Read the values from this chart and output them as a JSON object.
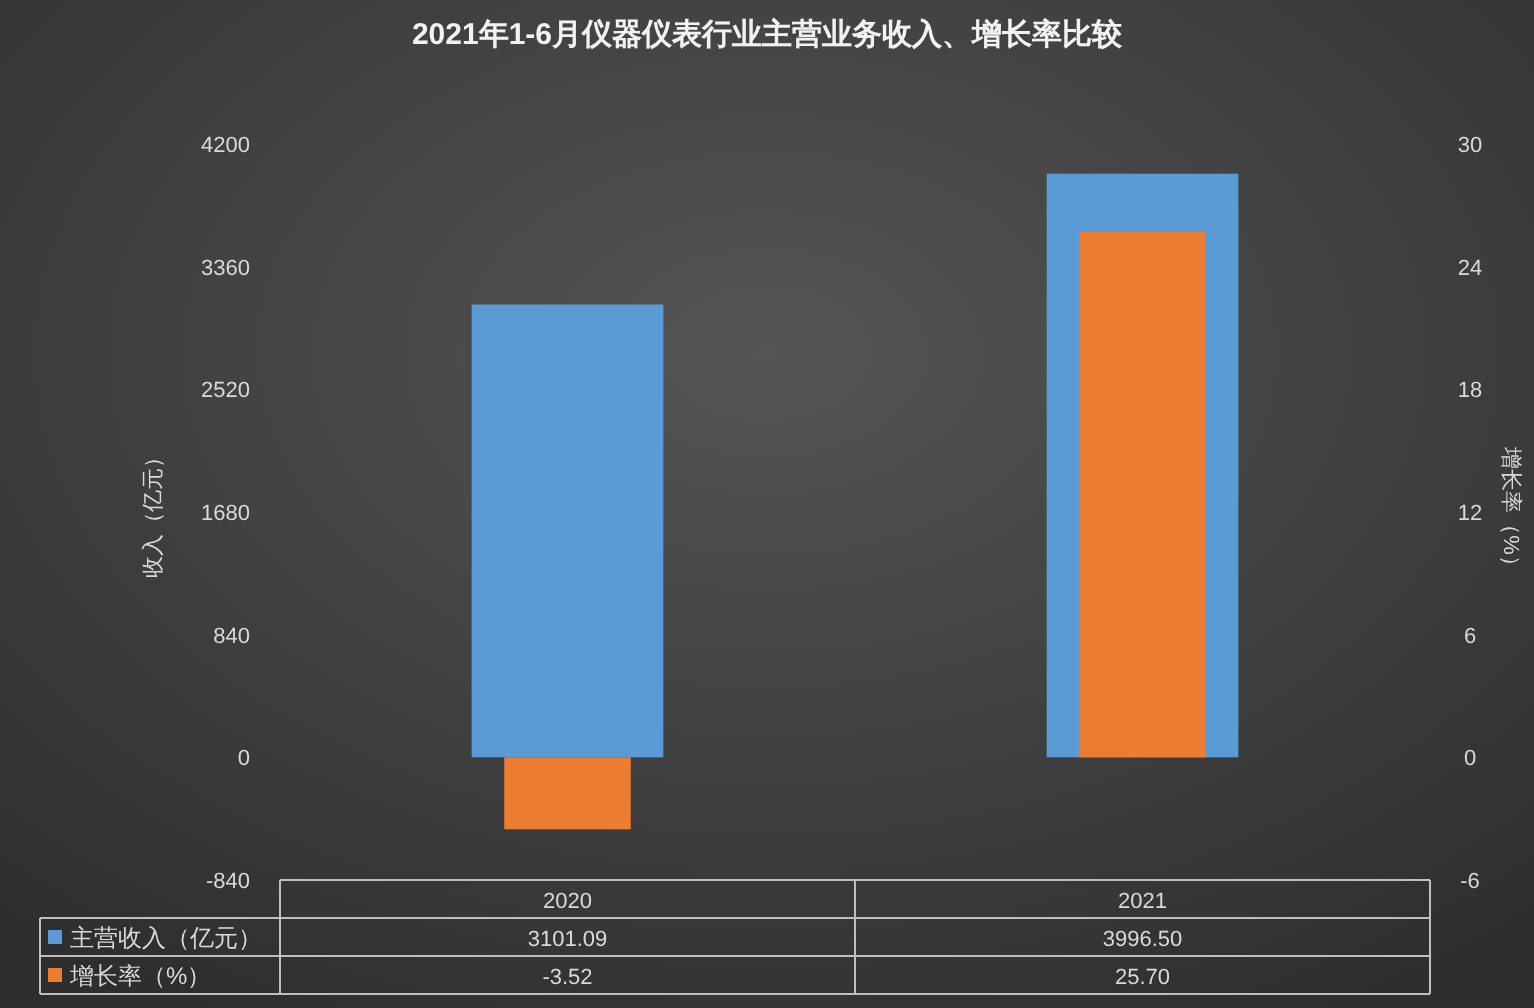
{
  "chart_data": {
    "type": "bar",
    "title": "2021年1-6月仪器仪表行业主营业务收入、增长率比较",
    "ylabel": "收入（亿元）",
    "y2label": "增长率（%）",
    "categories": [
      "2020",
      "2021"
    ],
    "series": [
      {
        "name": "主营收入（亿元）",
        "color": "#5b9bd5",
        "values": [
          3101.09,
          3996.5
        ],
        "value_labels": [
          "3101.09",
          "3996.50"
        ]
      },
      {
        "name": "增长率（%）",
        "color": "#ed7d31",
        "axis": "y2",
        "values": [
          -3.52,
          25.7
        ],
        "value_labels": [
          "-3.52",
          "25.70"
        ]
      }
    ],
    "ylim": [
      -840,
      4200
    ],
    "yticks": [
      -840,
      0,
      840,
      1680,
      2520,
      3360,
      4200
    ],
    "y2lim": [
      -6,
      30
    ],
    "y2ticks": [
      -6,
      0,
      6,
      12,
      18,
      24,
      30
    ],
    "legend": "bottom"
  }
}
